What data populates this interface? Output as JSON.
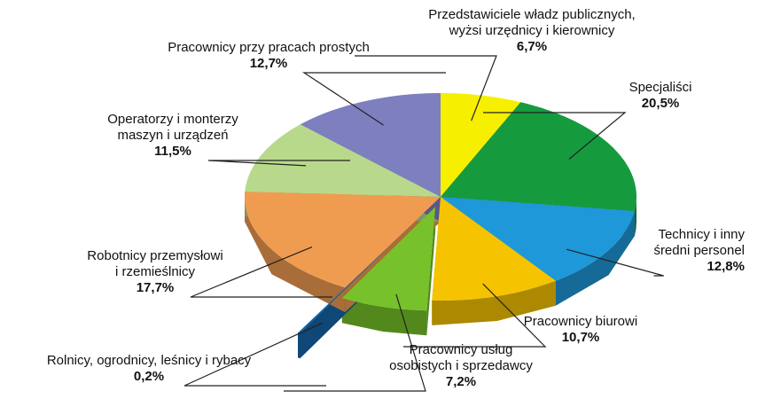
{
  "chart_data": {
    "type": "pie3d",
    "categories": [
      "Przedstawiciele władz publicznych,\nwyżsi urzędnicy i kierownicy",
      "Specjaliści",
      "Technicy i inny\nśredni personel",
      "Pracownicy biurowi",
      "Pracownicy usług\nosobistych i sprzedawcy",
      "Rolnicy, ogrodnicy, leśnicy i rybacy",
      "Robotnicy przemysłowi\ni rzemieślnicy",
      "Operatorzy i monterzy\nmaszyn i urządzeń",
      "Pracownicy przy pracach prostych"
    ],
    "values": [
      6.7,
      20.5,
      12.8,
      10.7,
      7.2,
      0.2,
      17.7,
      11.5,
      12.7
    ],
    "value_labels": [
      "6,7%",
      "20,5%",
      "12,8%",
      "10,7%",
      "7,2%",
      "0,2%",
      "17,7%",
      "11,5%",
      "12,7%"
    ],
    "colors": [
      "#f7ef00",
      "#169a3e",
      "#1e98d8",
      "#f5c300",
      "#77c22a",
      "#1565a8",
      "#f09c50",
      "#b8d98c",
      "#7e7fbf"
    ],
    "explode": [
      0,
      0,
      0,
      0,
      0.1,
      0.5,
      0,
      0,
      0
    ]
  }
}
